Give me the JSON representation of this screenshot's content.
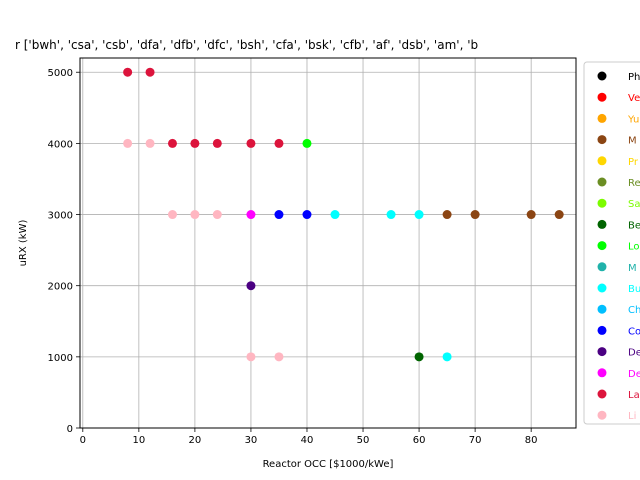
{
  "chart_data": {
    "type": "scatter",
    "title": "r ['bwh', 'csa', 'csb', 'dfa', 'dfb', 'dfc', 'bsh', 'cfa', 'bsk', 'cfb', 'af', 'dsb', 'am', 'b",
    "xlabel": "Reactor OCC [$1000/kWe]",
    "ylabel": "uRX (kW)",
    "xlim": [
      -0.5,
      88
    ],
    "ylim": [
      0,
      5200
    ],
    "xticks": [
      0,
      10,
      20,
      30,
      40,
      50,
      60,
      70,
      80
    ],
    "yticks": [
      0,
      1000,
      2000,
      3000,
      4000,
      5000
    ],
    "grid": true,
    "legend_position": "right",
    "series": [
      {
        "name": "Ph",
        "color": "#000000",
        "x": [],
        "y": []
      },
      {
        "name": "Ve",
        "color": "#ff0000",
        "x": [],
        "y": []
      },
      {
        "name": "Yu",
        "color": "#ffa500",
        "x": [],
        "y": []
      },
      {
        "name": "M",
        "color": "#8b4513",
        "x": [
          65,
          70,
          80,
          85
        ],
        "y": [
          3000,
          3000,
          3000,
          3000
        ]
      },
      {
        "name": "Pr",
        "color": "#ffd700",
        "x": [],
        "y": []
      },
      {
        "name": "Re",
        "color": "#6b8e23",
        "x": [],
        "y": []
      },
      {
        "name": "Sa",
        "color": "#7cfc00",
        "x": [],
        "y": []
      },
      {
        "name": "Be",
        "color": "#006400",
        "x": [
          60
        ],
        "y": [
          1000
        ]
      },
      {
        "name": "Lo",
        "color": "#00ff00",
        "x": [
          40
        ],
        "y": [
          4000
        ]
      },
      {
        "name": "M",
        "color": "#20b2aa",
        "x": [],
        "y": []
      },
      {
        "name": "Bu",
        "color": "#00ffff",
        "x": [
          45,
          55,
          60,
          65
        ],
        "y": [
          3000,
          3000,
          3000,
          1000
        ]
      },
      {
        "name": "Ch",
        "color": "#00bfff",
        "x": [],
        "y": []
      },
      {
        "name": "Co",
        "color": "#0000ff",
        "x": [
          35,
          40
        ],
        "y": [
          3000,
          3000
        ]
      },
      {
        "name": "De",
        "color": "#4b0082",
        "x": [
          30
        ],
        "y": [
          2000
        ]
      },
      {
        "name": "De",
        "color": "#ff00ff",
        "x": [
          30
        ],
        "y": [
          3000
        ]
      },
      {
        "name": "La",
        "color": "#dc143c",
        "x": [
          8,
          12,
          16,
          20,
          24,
          30,
          35
        ],
        "y": [
          5000,
          5000,
          4000,
          4000,
          4000,
          4000,
          4000
        ]
      },
      {
        "name": "Li",
        "color": "#ffb6c1",
        "x": [
          8,
          12,
          16,
          20,
          24,
          30,
          35
        ],
        "y": [
          4000,
          4000,
          3000,
          3000,
          3000,
          1000,
          1000
        ]
      }
    ]
  }
}
